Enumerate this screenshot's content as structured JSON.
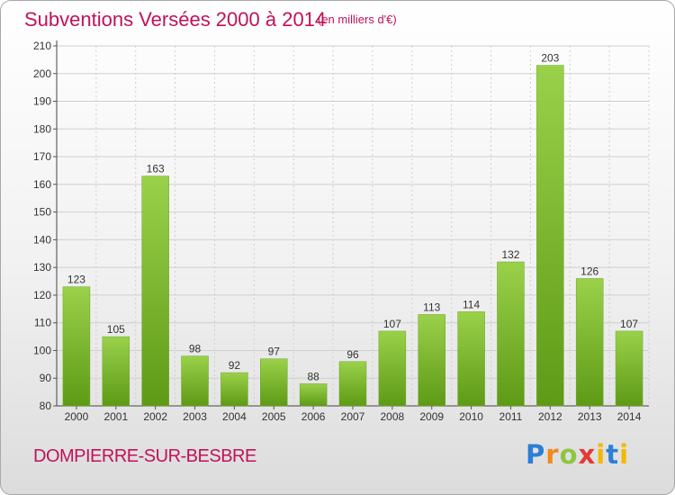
{
  "header": {
    "title": "Subventions Versées 2000 à 2014",
    "unit": "(en milliers d'€)"
  },
  "footer": {
    "commune": "DOMPIERRE-SUR-BESBRE",
    "logo": {
      "letters": [
        "P",
        "r",
        "o",
        "x",
        "i",
        "t",
        "i"
      ]
    }
  },
  "colors": {
    "title": "#c0125a",
    "bar_light": "#9ad14a",
    "bar_dark": "#5e9a16",
    "grid": "#cfcfcf"
  },
  "chart_data": {
    "type": "bar",
    "categories": [
      "2000",
      "2001",
      "2002",
      "2003",
      "2004",
      "2005",
      "2006",
      "2007",
      "2008",
      "2009",
      "2010",
      "2011",
      "2012",
      "2013",
      "2014"
    ],
    "values": [
      123,
      105,
      163,
      98,
      92,
      97,
      88,
      96,
      107,
      113,
      114,
      132,
      203,
      126,
      107
    ],
    "title": "Subventions Versées 2000 à 2014",
    "subtitle": "(en milliers d'€)",
    "ylim": [
      80,
      210
    ],
    "yticks": [
      80,
      90,
      100,
      110,
      120,
      130,
      140,
      150,
      160,
      170,
      180,
      190,
      200,
      210
    ],
    "grid": true,
    "data_labels": true
  }
}
